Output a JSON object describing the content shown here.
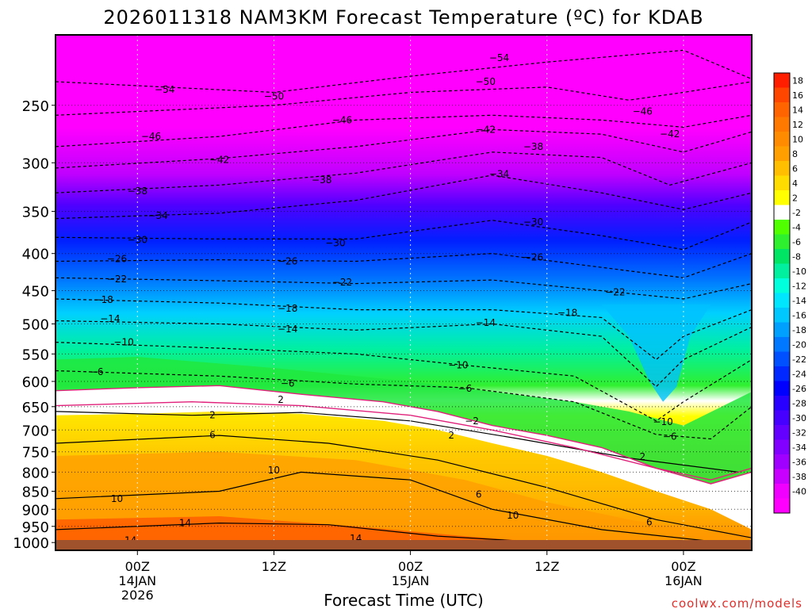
{
  "chart_data": {
    "type": "heatmap",
    "title": "2026011318 NAM3KM Forecast Temperature (ºC) for KDAB",
    "xlabel": "Forecast Time (UTC)",
    "ylabel": "",
    "credit": "coolwx.com/models",
    "y_scale": "log-pressure",
    "ylim": [
      1025,
      200
    ],
    "y_ticks": [
      250,
      300,
      350,
      400,
      450,
      500,
      550,
      600,
      650,
      700,
      750,
      800,
      850,
      900,
      950,
      1000
    ],
    "xlim": [
      -6,
      45
    ],
    "x_ticks": [
      {
        "hour": 0,
        "l1": "00Z",
        "l2": "14JAN",
        "l3": "2026"
      },
      {
        "hour": 10,
        "l1": "12Z",
        "l2": "",
        "l3": ""
      },
      {
        "hour": 20,
        "l1": "00Z",
        "l2": "15JAN",
        "l3": ""
      },
      {
        "hour": 30,
        "l1": "12Z",
        "l2": "",
        "l3": ""
      },
      {
        "hour": 40,
        "l1": "00Z",
        "l2": "16JAN",
        "l3": ""
      }
    ],
    "hour_unit_note_hidden": "",
    "grid": true,
    "legend": "right",
    "colorbar": {
      "labels": [
        "18",
        "16",
        "14",
        "12",
        "10",
        "8",
        "6",
        "4",
        "2",
        "-2",
        "-4",
        "-6",
        "-8",
        "-10",
        "-12",
        "-14",
        "-16",
        "-18",
        "-20",
        "-22",
        "-24",
        "-26",
        "-28",
        "-30",
        "-32",
        "-34",
        "-36",
        "-38",
        "-40"
      ],
      "colors": [
        "#ff1e00",
        "#ff4600",
        "#ff6400",
        "#ff7800",
        "#ff8c00",
        "#ffa000",
        "#ffbe00",
        "#ffdc00",
        "#ffff00",
        "#ffffff",
        "#50ff00",
        "#2ef02e",
        "#00e664",
        "#00f0a0",
        "#00ffdc",
        "#00e6ff",
        "#00c8ff",
        "#00a0ff",
        "#0078ff",
        "#0050ff",
        "#0028ff",
        "#0000ff",
        "#2800ff",
        "#4600ff",
        "#6400ff",
        "#8200ff",
        "#a000ff",
        "#c800ff",
        "#f000ff",
        "#ff00ff"
      ]
    },
    "contour_labels": [
      {
        "text": "-54",
        "x": 2,
        "p": 238
      },
      {
        "text": "-54",
        "x": 26.5,
        "p": 215
      },
      {
        "text": "-50",
        "x": 10,
        "p": 243
      },
      {
        "text": "-50",
        "x": 25.5,
        "p": 232
      },
      {
        "text": "-46",
        "x": 1,
        "p": 276
      },
      {
        "text": "-46",
        "x": 15,
        "p": 262
      },
      {
        "text": "-46",
        "x": 37,
        "p": 255
      },
      {
        "text": "-42",
        "x": 6,
        "p": 297
      },
      {
        "text": "-42",
        "x": 25.5,
        "p": 270
      },
      {
        "text": "-42",
        "x": 39,
        "p": 274
      },
      {
        "text": "-38",
        "x": 0,
        "p": 328
      },
      {
        "text": "-38",
        "x": 13.5,
        "p": 317
      },
      {
        "text": "-38",
        "x": 29,
        "p": 285
      },
      {
        "text": "-34",
        "x": 1.5,
        "p": 355
      },
      {
        "text": "-34",
        "x": 26.5,
        "p": 311
      },
      {
        "text": "-30",
        "x": 0,
        "p": 383
      },
      {
        "text": "-30",
        "x": 14.5,
        "p": 387
      },
      {
        "text": "-30",
        "x": 29,
        "p": 362
      },
      {
        "text": "-26",
        "x": -1.5,
        "p": 407
      },
      {
        "text": "-26",
        "x": 11,
        "p": 410
      },
      {
        "text": "-26",
        "x": 29,
        "p": 405
      },
      {
        "text": "-22",
        "x": -1.5,
        "p": 434
      },
      {
        "text": "-22",
        "x": 15,
        "p": 438
      },
      {
        "text": "-22",
        "x": 35,
        "p": 452
      },
      {
        "text": "-18",
        "x": -2.5,
        "p": 463
      },
      {
        "text": "-18",
        "x": 11,
        "p": 476
      },
      {
        "text": "-18",
        "x": 31.5,
        "p": 483
      },
      {
        "text": "-14",
        "x": -2,
        "p": 492
      },
      {
        "text": "-14",
        "x": 11,
        "p": 508
      },
      {
        "text": "-14",
        "x": 25.5,
        "p": 498
      },
      {
        "text": "-10",
        "x": -1,
        "p": 530
      },
      {
        "text": "-10",
        "x": 23.5,
        "p": 570
      },
      {
        "text": "-10",
        "x": 38.5,
        "p": 682
      },
      {
        "text": "-6",
        "x": -3,
        "p": 582
      },
      {
        "text": "-6",
        "x": 11,
        "p": 604
      },
      {
        "text": "-6",
        "x": 24,
        "p": 614
      },
      {
        "text": "-6",
        "x": 39,
        "p": 715
      },
      {
        "text": "2",
        "x": 10.5,
        "p": 636
      },
      {
        "text": "2",
        "x": 5.5,
        "p": 668
      },
      {
        "text": "-2",
        "x": 24.5,
        "p": 680
      },
      {
        "text": "2",
        "x": 23,
        "p": 712
      },
      {
        "text": "2",
        "x": 37,
        "p": 762
      },
      {
        "text": "6",
        "x": 5.5,
        "p": 711
      },
      {
        "text": "6",
        "x": 25,
        "p": 858
      },
      {
        "text": "6",
        "x": 37.5,
        "p": 938
      },
      {
        "text": "10",
        "x": 10,
        "p": 795
      },
      {
        "text": "10",
        "x": -1.5,
        "p": 870
      },
      {
        "text": "10",
        "x": 27.5,
        "p": 918
      },
      {
        "text": "14",
        "x": 3.5,
        "p": 940
      },
      {
        "text": "14",
        "x": 16,
        "p": 987
      },
      {
        "text": "14",
        "x": -0.5,
        "p": 993
      }
    ]
  }
}
